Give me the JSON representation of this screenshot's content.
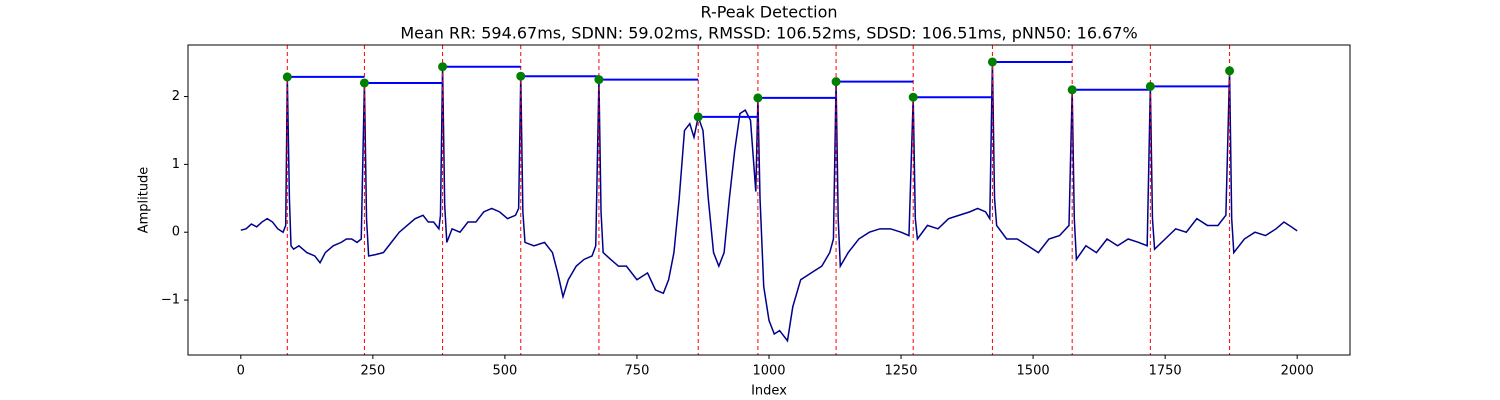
{
  "chart_data": {
    "type": "line",
    "title": "R-Peak Detection",
    "subtitle": "Mean RR: 594.67ms, SDNN: 59.02ms, RMSSD: 106.52ms, SDSD: 106.51ms, pNN50: 16.67%",
    "x_label": "Index",
    "y_label": "Amplitude",
    "xlim": [
      -100,
      2100
    ],
    "ylim": [
      -1.81,
      2.76
    ],
    "xticks": [
      0,
      250,
      500,
      750,
      1000,
      1250,
      1500,
      1750,
      2000
    ],
    "yticks": [
      {
        "value": -1,
        "label": "−1"
      },
      0,
      1,
      2
    ],
    "series": [
      {
        "color": "#00008b",
        "x": [
          0,
          10,
          20,
          30,
          40,
          50,
          60,
          70,
          80,
          85,
          88,
          92,
          95,
          100,
          110,
          125,
          140,
          150,
          160,
          175,
          190,
          200,
          210,
          220,
          228,
          234,
          238,
          242,
          255,
          270,
          285,
          300,
          315,
          330,
          345,
          355,
          365,
          375,
          378,
          382,
          386,
          390,
          400,
          415,
          430,
          445,
          460,
          475,
          490,
          505,
          520,
          526,
          530,
          534,
          538,
          555,
          575,
          590,
          600,
          610,
          620,
          635,
          650,
          665,
          672,
          678,
          682,
          686,
          700,
          715,
          730,
          750,
          770,
          785,
          800,
          810,
          820,
          830,
          840,
          850,
          858,
          866,
          875,
          885,
          895,
          905,
          915,
          925,
          935,
          945,
          955,
          965,
          975,
          979,
          983,
          990,
          1000,
          1010,
          1020,
          1035,
          1045,
          1060,
          1080,
          1100,
          1115,
          1122,
          1127,
          1131,
          1135,
          1150,
          1170,
          1190,
          1210,
          1230,
          1250,
          1265,
          1273,
          1277,
          1281,
          1300,
          1320,
          1340,
          1360,
          1380,
          1395,
          1410,
          1418,
          1423,
          1427,
          1431,
          1450,
          1470,
          1490,
          1510,
          1530,
          1550,
          1568,
          1574,
          1578,
          1582,
          1600,
          1620,
          1640,
          1660,
          1680,
          1700,
          1716,
          1722,
          1726,
          1730,
          1750,
          1770,
          1790,
          1810,
          1830,
          1850,
          1865,
          1872,
          1876,
          1880,
          1900,
          1920,
          1940,
          1960,
          1975,
          1985,
          2000
        ],
        "values": [
          0.03,
          0.05,
          0.12,
          0.08,
          0.15,
          0.2,
          0.15,
          0.05,
          0.0,
          0.1,
          2.29,
          0.5,
          -0.2,
          -0.25,
          -0.2,
          -0.3,
          -0.35,
          -0.45,
          -0.3,
          -0.2,
          -0.15,
          -0.1,
          -0.1,
          -0.15,
          -0.1,
          2.2,
          0.2,
          -0.35,
          -0.33,
          -0.3,
          -0.15,
          0.0,
          0.1,
          0.2,
          0.25,
          0.15,
          0.15,
          0.05,
          0.25,
          2.44,
          0.4,
          -0.15,
          0.05,
          0.0,
          0.15,
          0.15,
          0.3,
          0.35,
          0.3,
          0.2,
          0.25,
          0.35,
          2.3,
          0.3,
          -0.15,
          -0.2,
          -0.15,
          -0.3,
          -0.6,
          -0.95,
          -0.7,
          -0.5,
          -0.4,
          -0.35,
          -0.2,
          2.25,
          0.3,
          -0.3,
          -0.4,
          -0.5,
          -0.5,
          -0.7,
          -0.6,
          -0.85,
          -0.9,
          -0.7,
          -0.3,
          0.5,
          1.5,
          1.6,
          1.4,
          1.7,
          1.5,
          0.5,
          -0.3,
          -0.5,
          -0.3,
          0.5,
          1.2,
          1.75,
          1.8,
          1.65,
          0.6,
          1.98,
          0.5,
          -0.8,
          -1.3,
          -1.5,
          -1.45,
          -1.6,
          -1.1,
          -0.7,
          -0.6,
          -0.5,
          -0.3,
          -0.1,
          2.22,
          0.2,
          -0.5,
          -0.3,
          -0.1,
          0.0,
          0.05,
          0.05,
          0.0,
          -0.05,
          1.99,
          0.2,
          -0.1,
          0.1,
          0.05,
          0.2,
          0.25,
          0.3,
          0.35,
          0.3,
          0.2,
          2.51,
          0.5,
          0.1,
          -0.1,
          -0.1,
          -0.2,
          -0.3,
          -0.1,
          -0.05,
          0.1,
          2.1,
          0.2,
          -0.4,
          -0.2,
          -0.3,
          -0.1,
          -0.2,
          -0.1,
          -0.15,
          -0.2,
          2.15,
          0.2,
          -0.25,
          -0.1,
          0.05,
          0.0,
          0.2,
          0.1,
          0.1,
          0.25,
          2.38,
          0.2,
          -0.3,
          -0.1,
          0.0,
          -0.05,
          0.05,
          0.15,
          0.1,
          0.02
        ]
      }
    ],
    "peaks": {
      "color": "#008000",
      "line_color": "#0000ff",
      "marker_color": "#ff0000",
      "x": [
        88,
        234,
        382,
        530,
        678,
        866,
        979,
        1127,
        1273,
        1423,
        1574,
        1722,
        1872
      ],
      "values": [
        2.29,
        2.2,
        2.44,
        2.3,
        2.25,
        1.7,
        1.98,
        2.22,
        1.99,
        2.51,
        2.1,
        2.15,
        2.38
      ]
    }
  }
}
